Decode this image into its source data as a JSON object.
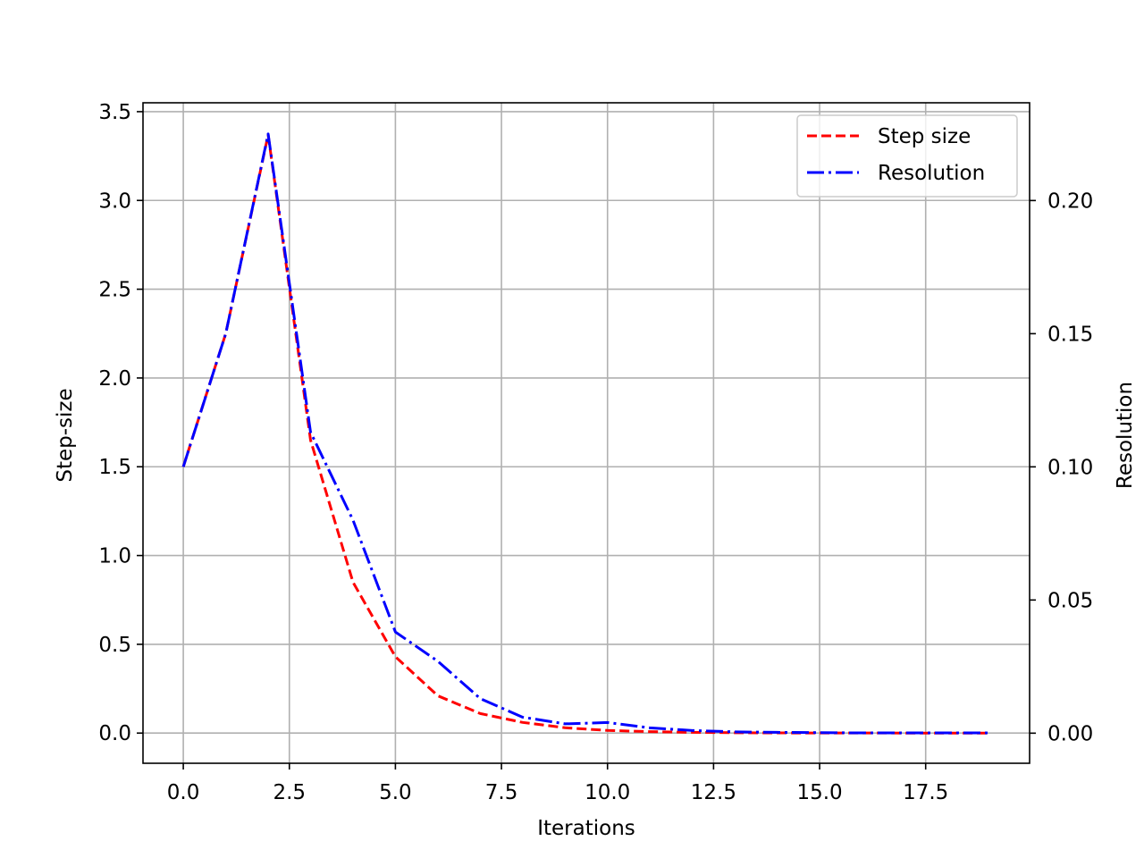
{
  "chart_data": {
    "type": "line",
    "title": "",
    "xlabel": "Iterations",
    "ylabel": "Step-size",
    "y2label": "Resolution",
    "xlim": [
      -0.95,
      19.95
    ],
    "ylim": [
      -0.17,
      3.55
    ],
    "y2lim": [
      -0.0113,
      0.2367
    ],
    "xticks": [
      0,
      2.5,
      5,
      7.5,
      10,
      12.5,
      15,
      17.5
    ],
    "xtick_labels": [
      "0.0",
      "2.5",
      "5.0",
      "7.5",
      "10.0",
      "12.5",
      "15.0",
      "17.5"
    ],
    "yticks": [
      0,
      0.5,
      1,
      1.5,
      2,
      2.5,
      3,
      3.5
    ],
    "ytick_labels": [
      "0.0",
      "0.5",
      "1.0",
      "1.5",
      "2.0",
      "2.5",
      "3.0",
      "3.5"
    ],
    "y2ticks": [
      0,
      0.05,
      0.1,
      0.15,
      0.2
    ],
    "y2tick_labels": [
      "0.00",
      "0.05",
      "0.10",
      "0.15",
      "0.20"
    ],
    "grid": true,
    "legend_position": "upper-right",
    "x": [
      0,
      1,
      2,
      3,
      4,
      5,
      6,
      7,
      8,
      9,
      10,
      11,
      12,
      13,
      14,
      15,
      16,
      17,
      18,
      19
    ],
    "series": [
      {
        "name": "Step size",
        "axis": "left",
        "color": "#ff0000",
        "style": "dashed",
        "values": [
          1.5,
          2.25,
          3.37,
          1.65,
          0.85,
          0.43,
          0.21,
          0.11,
          0.06,
          0.03,
          0.015,
          0.008,
          0.004,
          0.002,
          0.001,
          0.0005,
          0.0003,
          0.0002,
          0.0001,
          0.0001
        ]
      },
      {
        "name": "Resolution",
        "axis": "right",
        "color": "#0000ff",
        "style": "dashdot",
        "values": [
          0.1,
          0.15,
          0.225,
          0.113,
          0.08,
          0.038,
          0.027,
          0.013,
          0.006,
          0.0035,
          0.004,
          0.002,
          0.001,
          0.0005,
          0.0003,
          0.0002,
          0.0001,
          0.0001,
          0.0001,
          0.0001
        ]
      }
    ]
  }
}
